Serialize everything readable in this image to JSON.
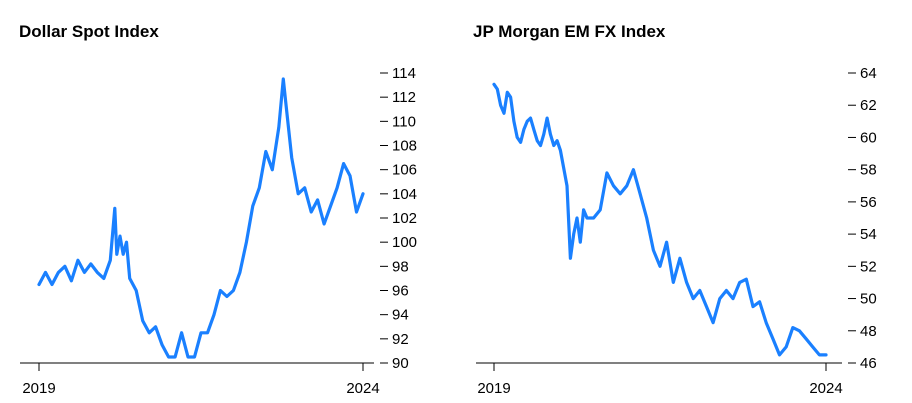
{
  "chart_data": [
    {
      "type": "line",
      "title": "Dollar Spot Index",
      "xlabel": "",
      "ylabel": "",
      "x_ticks": [
        "2019",
        "2024"
      ],
      "xlim": [
        2019.0,
        2024.0
      ],
      "ylim": [
        90,
        114
      ],
      "y_ticks": [
        90,
        92,
        94,
        96,
        98,
        100,
        102,
        104,
        106,
        108,
        110,
        112,
        114
      ],
      "y_axis_side": "right",
      "grid": false,
      "line_color": "#1a80ff",
      "x": [
        2019.0,
        2019.1,
        2019.2,
        2019.3,
        2019.4,
        2019.5,
        2019.6,
        2019.7,
        2019.8,
        2019.9,
        2020.0,
        2020.1,
        2020.17,
        2020.2,
        2020.25,
        2020.3,
        2020.35,
        2020.4,
        2020.5,
        2020.6,
        2020.7,
        2020.8,
        2020.9,
        2021.0,
        2021.1,
        2021.2,
        2021.3,
        2021.4,
        2021.5,
        2021.6,
        2021.7,
        2021.8,
        2021.9,
        2022.0,
        2022.1,
        2022.2,
        2022.3,
        2022.4,
        2022.5,
        2022.6,
        2022.7,
        2022.77,
        2022.8,
        2022.9,
        2023.0,
        2023.1,
        2023.2,
        2023.3,
        2023.4,
        2023.5,
        2023.6,
        2023.7,
        2023.8,
        2023.9,
        2024.0
      ],
      "series": [
        {
          "values": [
            96.5,
            97.5,
            96.5,
            97.5,
            98.0,
            96.8,
            98.5,
            97.5,
            98.2,
            97.5,
            97.0,
            98.5,
            102.8,
            99.0,
            100.5,
            99.0,
            100.0,
            97.0,
            96.0,
            93.5,
            92.5,
            93.0,
            91.5,
            90.5,
            90.5,
            92.5,
            90.5,
            90.5,
            92.5,
            92.5,
            94.0,
            96.0,
            95.5,
            96.0,
            97.5,
            100.0,
            103.0,
            104.5,
            107.5,
            106.0,
            109.5,
            113.5,
            112.0,
            107.0,
            104.0,
            104.5,
            102.5,
            103.5,
            101.5,
            103.0,
            104.5,
            106.5,
            105.5,
            102.5,
            104.0
          ]
        }
      ]
    },
    {
      "type": "line",
      "title": "JP Morgan EM FX Index",
      "xlabel": "",
      "ylabel": "",
      "x_ticks": [
        "2019",
        "2024"
      ],
      "xlim": [
        2019.0,
        2024.0
      ],
      "ylim": [
        46,
        64
      ],
      "y_ticks": [
        46,
        48,
        50,
        52,
        54,
        56,
        58,
        60,
        62,
        64
      ],
      "y_axis_side": "right",
      "grid": false,
      "line_color": "#1a80ff",
      "x": [
        2019.0,
        2019.05,
        2019.1,
        2019.15,
        2019.2,
        2019.25,
        2019.3,
        2019.35,
        2019.4,
        2019.45,
        2019.5,
        2019.55,
        2019.6,
        2019.65,
        2019.7,
        2019.75,
        2019.8,
        2019.85,
        2019.9,
        2019.95,
        2020.0,
        2020.1,
        2020.15,
        2020.2,
        2020.25,
        2020.3,
        2020.35,
        2020.4,
        2020.5,
        2020.6,
        2020.7,
        2020.8,
        2020.9,
        2021.0,
        2021.1,
        2021.2,
        2021.3,
        2021.4,
        2021.5,
        2021.6,
        2021.7,
        2021.8,
        2021.9,
        2022.0,
        2022.1,
        2022.2,
        2022.3,
        2022.4,
        2022.5,
        2022.6,
        2022.7,
        2022.8,
        2022.9,
        2023.0,
        2023.1,
        2023.2,
        2023.3,
        2023.4,
        2023.5,
        2023.6,
        2023.7,
        2023.8,
        2023.9,
        2024.0
      ],
      "series": [
        {
          "values": [
            63.3,
            63.0,
            62.0,
            61.5,
            62.8,
            62.5,
            61.0,
            60.0,
            59.7,
            60.5,
            61.0,
            61.2,
            60.5,
            59.8,
            59.5,
            60.2,
            61.2,
            60.2,
            59.5,
            59.8,
            59.2,
            57.0,
            52.5,
            54.0,
            55.0,
            53.5,
            55.5,
            55.0,
            55.0,
            55.5,
            57.8,
            57.0,
            56.5,
            57.0,
            58.0,
            56.5,
            55.0,
            53.0,
            52.0,
            53.5,
            51.0,
            52.5,
            51.0,
            50.0,
            50.5,
            49.5,
            48.5,
            50.0,
            50.5,
            50.0,
            51.0,
            51.2,
            49.5,
            49.8,
            48.5,
            47.5,
            46.5,
            47.0,
            48.2,
            48.0,
            47.5,
            47.0,
            46.5,
            46.5
          ]
        }
      ]
    }
  ]
}
